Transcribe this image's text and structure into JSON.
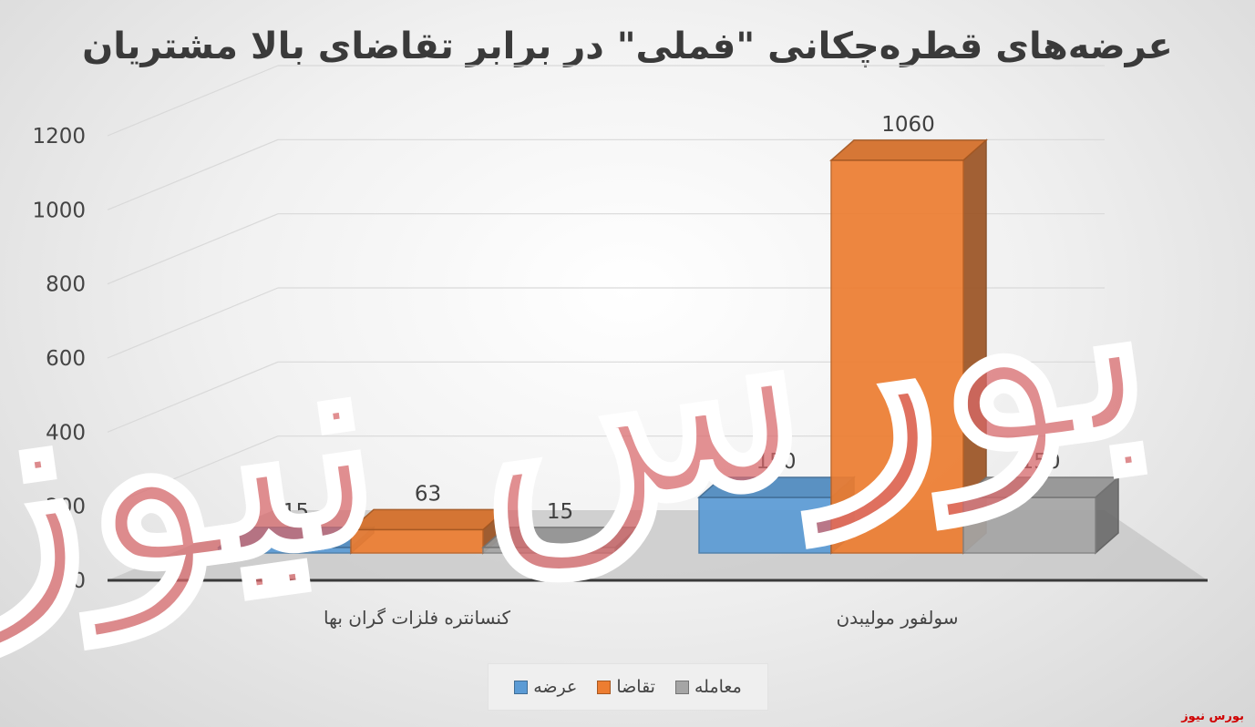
{
  "chart_data": {
    "type": "bar",
    "title": "عرضه‌های قطره‌چکانی \"فملی\" در برابر تقاضای بالا مشتریان",
    "categories": [
      "کنسانتره فلزات گران بها",
      "سولفور مولیبدن"
    ],
    "series": [
      {
        "name": "عرضه",
        "values": [
          15,
          150
        ],
        "color": "#5b9bd5"
      },
      {
        "name": "تقاضا",
        "values": [
          63,
          1060
        ],
        "color": "#ed7d31"
      },
      {
        "name": "معامله",
        "values": [
          15,
          150
        ],
        "color": "#a5a5a5"
      }
    ],
    "ylim": [
      0,
      1200
    ],
    "yticks": [
      "0",
      "200",
      "400",
      "600",
      "800",
      "1000",
      "1200"
    ],
    "grid": true,
    "legend_position": "bottom",
    "style": "3d-clustered-column"
  },
  "watermark": {
    "text": "بورس نیوز",
    "color": "#d9686b"
  },
  "source_tag": "بورس نیوز"
}
